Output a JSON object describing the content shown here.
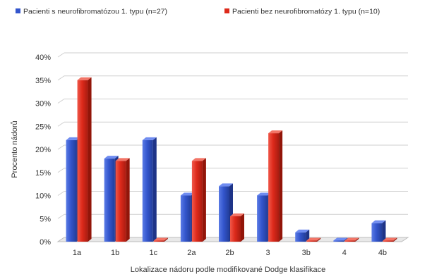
{
  "chart_data": {
    "type": "bar",
    "title": "",
    "xlabel": "Lokalizace nádoru podle modifikované Dodge klasifikace",
    "ylabel": "Procento nádorů",
    "ylim": [
      0,
      40
    ],
    "y_ticks": [
      "0%",
      "5%",
      "10%",
      "15%",
      "20%",
      "25%",
      "30%",
      "35%",
      "40%"
    ],
    "y_tick_values": [
      0,
      5,
      10,
      15,
      20,
      25,
      30,
      35,
      40
    ],
    "categories": [
      "1a",
      "1b",
      "1c",
      "2a",
      "2b",
      "3",
      "3b",
      "4",
      "4b"
    ],
    "series": [
      {
        "name": "Pacienti s neurofibromatózou 1. typu (n=27)",
        "color": "#3355cc",
        "values": [
          22,
          18,
          22,
          10,
          12,
          10,
          2,
          0,
          4
        ]
      },
      {
        "name": "Pacienti bez neurofibromatózy 1. typu (n=10)",
        "color": "#dd2a1b",
        "values": [
          35,
          17.5,
          0,
          17.5,
          5.5,
          23.5,
          0,
          0,
          0
        ]
      }
    ],
    "grid": true,
    "legend_position": "top"
  }
}
